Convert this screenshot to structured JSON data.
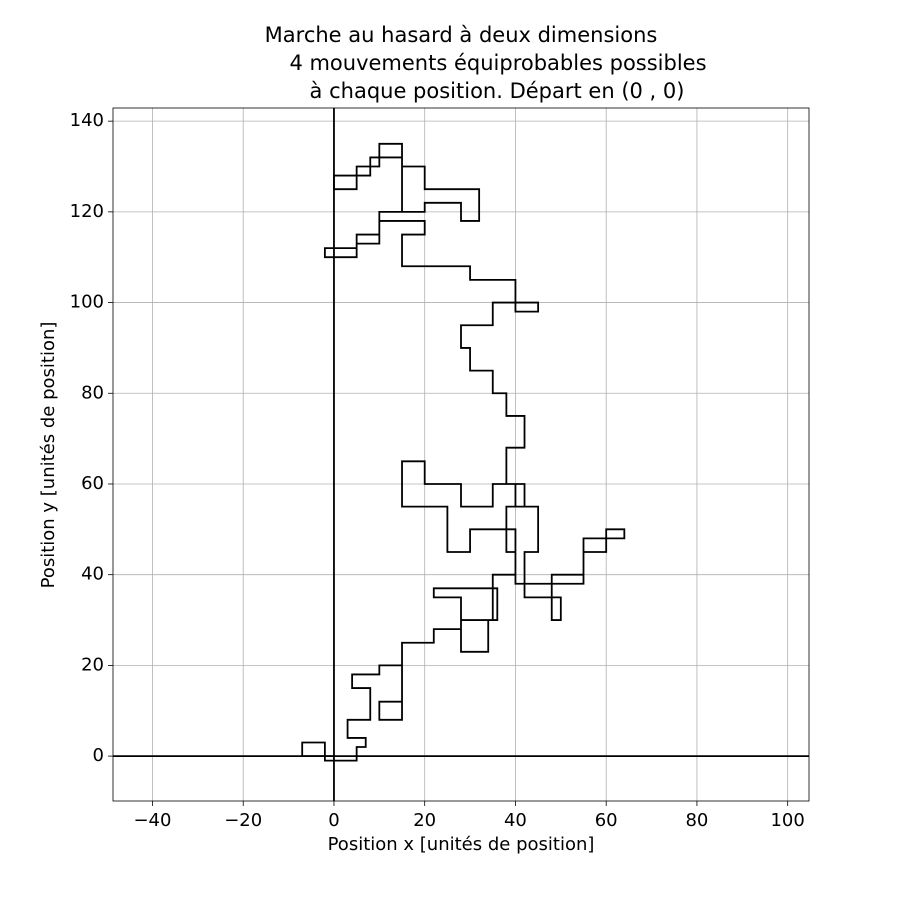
{
  "chart_data": {
    "type": "line",
    "title": [
      "Marche au hasard à deux dimensions",
      "4 mouvements équiprobables possibles",
      "à chaque position. Départ en (0 , 0)"
    ],
    "xlabel": "Position x [unités de position]",
    "ylabel": "Position y [unités de position]",
    "x": [
      0,
      -7,
      -7,
      -2,
      -2,
      5,
      5,
      7,
      7,
      3,
      3,
      8,
      8,
      4,
      4,
      10,
      10,
      15,
      15,
      10,
      10,
      15,
      15,
      22,
      22,
      28,
      28,
      22,
      22,
      30,
      36,
      36,
      34,
      34,
      28,
      28,
      35,
      35,
      40,
      40,
      30,
      30,
      25,
      25,
      15,
      15,
      20,
      20,
      28,
      28,
      35,
      35,
      40,
      40,
      45,
      45,
      42,
      42,
      50,
      50,
      48,
      48,
      55,
      55,
      60,
      60,
      64,
      64,
      55,
      55,
      40,
      40,
      38,
      38,
      42,
      42,
      38,
      38,
      42,
      42,
      38,
      38,
      35,
      35,
      30,
      30,
      28,
      28,
      35,
      35,
      45,
      45,
      40,
      40,
      30,
      30,
      15,
      15,
      20,
      20,
      10,
      10,
      5,
      5,
      -2,
      -2,
      5,
      5,
      10,
      10,
      20,
      20,
      28,
      28,
      32,
      32,
      20,
      20,
      15,
      15,
      10,
      10,
      5,
      5,
      0,
      0,
      8,
      8,
      15,
      15,
      12
    ],
    "series": [
      {
        "color": "#000000",
        "values": [
          0,
          0,
          3,
          3,
          -1,
          -1,
          2,
          2,
          4,
          4,
          8,
          8,
          15,
          15,
          18,
          18,
          20,
          20,
          12,
          12,
          8,
          8,
          25,
          25,
          28,
          28,
          35,
          35,
          37,
          37,
          37,
          30,
          30,
          23,
          23,
          30,
          30,
          40,
          40,
          50,
          50,
          45,
          45,
          55,
          55,
          65,
          65,
          60,
          60,
          55,
          55,
          60,
          60,
          55,
          55,
          45,
          45,
          35,
          35,
          30,
          30,
          40,
          40,
          45,
          45,
          50,
          50,
          48,
          48,
          38,
          38,
          45,
          45,
          55,
          55,
          60,
          60,
          68,
          68,
          75,
          75,
          80,
          80,
          85,
          85,
          90,
          90,
          95,
          95,
          100,
          100,
          98,
          98,
          105,
          105,
          108,
          108,
          115,
          115,
          118,
          118,
          115,
          115,
          112,
          112,
          110,
          110,
          113,
          113,
          120,
          120,
          122,
          122,
          118,
          118,
          125,
          125,
          130,
          130,
          135,
          135,
          130,
          130,
          125,
          125,
          128,
          128,
          132,
          132,
          120,
          120
        ]
      }
    ],
    "xlim": [
      -48.7,
      104.7
    ],
    "ylim": [
      -9.9,
      142.9
    ],
    "xticks": [
      {
        "value": -40,
        "label": "−40"
      },
      {
        "value": -20,
        "label": "−20"
      },
      0,
      20,
      40,
      60,
      80,
      100
    ],
    "yticks": [
      0,
      20,
      40,
      60,
      80,
      100,
      120,
      140
    ],
    "grid": true
  }
}
